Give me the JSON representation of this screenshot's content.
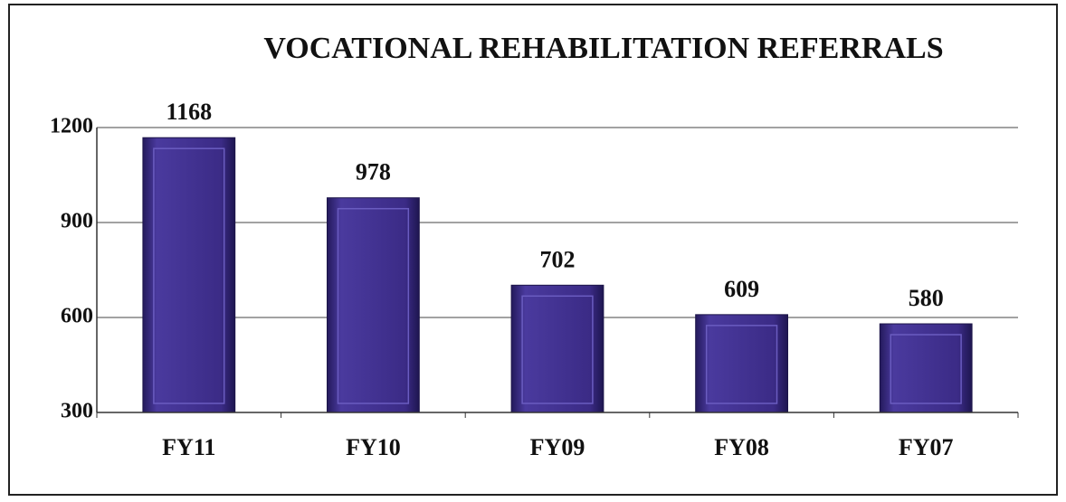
{
  "chart_data": {
    "type": "bar",
    "title": "VOCATIONAL REHABILITATION REFERRALS",
    "categories": [
      "FY11",
      "FY10",
      "FY09",
      "FY08",
      "FY07"
    ],
    "values": [
      1168,
      978,
      702,
      609,
      580
    ],
    "color": "#3b2b86",
    "ylim": [
      300,
      1200
    ],
    "yticks": [
      300,
      600,
      900,
      1200
    ],
    "grid": true
  }
}
